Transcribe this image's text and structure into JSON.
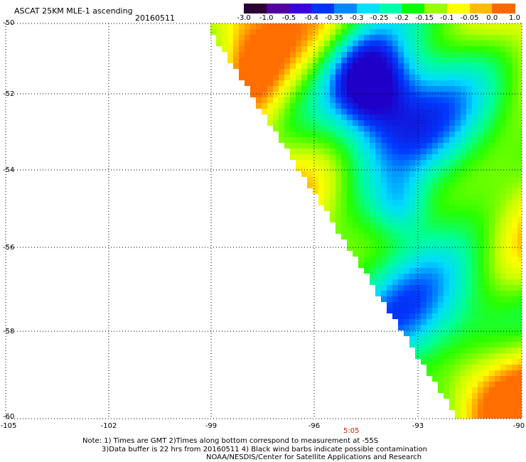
{
  "header": {
    "title": "ASCAT 25KM MLE-1 ascending",
    "date": "20160511"
  },
  "colorbar": {
    "tick_labels": [
      "-3.0",
      "-1.0",
      "-0.5",
      "-0.4",
      "-0.35",
      "-0.3",
      "-0.25",
      "-0.2",
      "-0.15",
      "-0.1",
      "-0.05",
      "0.0",
      "1.0"
    ],
    "colors": [
      "#2a0033",
      "#5200a0",
      "#3a00e0",
      "#0033ff",
      "#0088ff",
      "#00e0ff",
      "#00ffaa",
      "#00ff00",
      "#99ff00",
      "#ffff00",
      "#ffbb00",
      "#ff6600",
      "#ff0000"
    ]
  },
  "map": {
    "lat_labels": [
      "-50",
      "-52",
      "-54",
      "-56",
      "-58",
      "-60"
    ],
    "lon_labels": [
      "-105",
      "-102",
      "-99",
      "-96",
      "-93",
      "-90"
    ],
    "time_label": "5:05",
    "time_color": "#cc2200"
  },
  "notes": {
    "line1": "Note: 1) Times are GMT 2)Times along bottom correspond to measurement at -55S",
    "line2": "3)Data buffer is 22 hrs from 20160511 4) Black wind barbs indicate possible contamination",
    "line3": "NOAA/NESDIS/Center for Satellite Applications and Research"
  }
}
